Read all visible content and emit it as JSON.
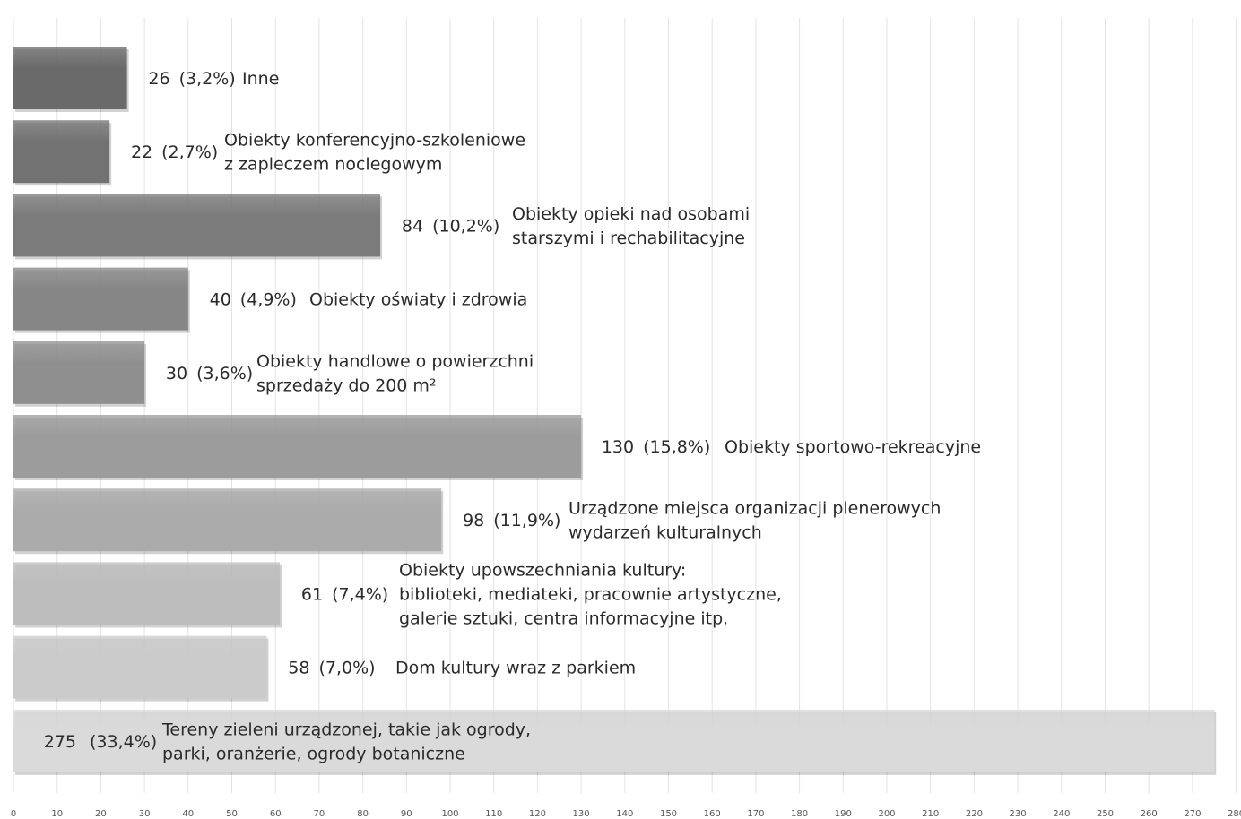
{
  "chart_data": {
    "type": "bar",
    "orientation": "horizontal",
    "xlim": [
      0,
      280
    ],
    "x_ticks": [
      "0",
      "10",
      "20",
      "30",
      "40",
      "50",
      "60",
      "70",
      "80",
      "90",
      "100",
      "110",
      "120",
      "130",
      "140",
      "150",
      "160",
      "170",
      "180",
      "190",
      "200",
      "210",
      "220",
      "230",
      "240",
      "250",
      "260",
      "270",
      "280"
    ],
    "grid": true,
    "bars": [
      {
        "value": 26,
        "label": "26",
        "percent": "(3,2%)",
        "category": [
          "Inne"
        ],
        "color": "#6a6a6a"
      },
      {
        "value": 22,
        "label": "22",
        "percent": "(2,7%)",
        "category": [
          "Obiekty konferencyjno-szkoleniowe",
          "z zapleczem noclegowym"
        ],
        "color": "#727272"
      },
      {
        "value": 84,
        "label": "84",
        "percent": "(10,2%)",
        "category": [
          "Obiekty opieki nad osobami",
          "starszymi i rechabilitacyjne"
        ],
        "color": "#7b7b7b"
      },
      {
        "value": 40,
        "label": "40",
        "percent": "(4,9%)",
        "category": [
          "Obiekty oświaty i zdrowia"
        ],
        "color": "#868686"
      },
      {
        "value": 30,
        "label": "30",
        "percent": "(3,6%)",
        "category": [
          "Obiekty handlowe o powierzchni",
          "sprzedaży do 200 m²"
        ],
        "color": "#8f8f8f"
      },
      {
        "value": 130,
        "label": "130",
        "percent": "(15,8%)",
        "category": [
          "Obiekty sportowo-rekreacyjne"
        ],
        "color": "#9c9c9c"
      },
      {
        "value": 98,
        "label": "98",
        "percent": "(11,9%)",
        "category": [
          "Urządzone miejsca organizacji plenerowych",
          "wydarzeń kulturalnych"
        ],
        "color": "#ababab"
      },
      {
        "value": 61,
        "label": "61",
        "percent": "(7,4%)",
        "category": [
          "Obiekty upowszechniania kultury:",
          "biblioteki, mediateki, pracownie artystyczne,",
          "galerie sztuki, centra informacyjne itp."
        ],
        "color": "#bdbdbd"
      },
      {
        "value": 58,
        "label": "58",
        "percent": "(7,0%)",
        "category": [
          "Dom kultury wraz z parkiem"
        ],
        "color": "#cbcbcb"
      },
      {
        "value": 275,
        "label": "275",
        "percent": "(33,4%)",
        "category": [
          "Tereny zieleni urządzonej, takie jak ogrody,",
          "parki, oranżerie, ogrody botaniczne"
        ],
        "color": "#dadada"
      }
    ]
  }
}
